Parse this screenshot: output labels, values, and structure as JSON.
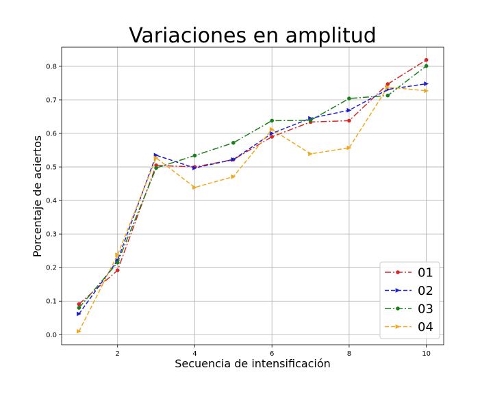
{
  "chart_data": {
    "type": "line",
    "title": "Variaciones en amplitud",
    "xlabel": "Secuencia de intensificación",
    "ylabel": "Porcentaje de aciertos",
    "x": [
      1,
      2,
      3,
      4,
      5,
      6,
      7,
      8,
      9,
      10
    ],
    "xlim": [
      0.55,
      10.45
    ],
    "ylim": [
      -0.03,
      0.857
    ],
    "xticks": [
      2,
      4,
      6,
      8,
      10
    ],
    "yticks": [
      0.0,
      0.1,
      0.2,
      0.3,
      0.4,
      0.5,
      0.6,
      0.7,
      0.8
    ],
    "ytick_labels": [
      "0.0",
      "0.1",
      "0.2",
      "0.3",
      "0.4",
      "0.5",
      "0.6",
      "0.7",
      "0.8"
    ],
    "grid": true,
    "legend_position": "lower-right",
    "series": [
      {
        "name": "01",
        "color": "#d62728",
        "dash": "dashdot",
        "marker": "circle",
        "values": [
          0.091,
          0.192,
          0.505,
          0.5,
          0.522,
          0.59,
          0.634,
          0.638,
          0.747,
          0.819
        ]
      },
      {
        "name": "02",
        "color": "#1f1fcc",
        "dash": "dashed",
        "marker": "triangle-right",
        "values": [
          0.062,
          0.222,
          0.535,
          0.497,
          0.522,
          0.6,
          0.645,
          0.669,
          0.731,
          0.748
        ]
      },
      {
        "name": "03",
        "color": "#1a7f1a",
        "dash": "dashdot",
        "marker": "circle",
        "values": [
          0.08,
          0.215,
          0.497,
          0.534,
          0.572,
          0.638,
          0.639,
          0.704,
          0.713,
          0.801
        ]
      },
      {
        "name": "04",
        "color": "#f0a81e",
        "dash": "dashed",
        "marker": "triangle-right",
        "values": [
          0.01,
          0.238,
          0.527,
          0.439,
          0.471,
          0.612,
          0.539,
          0.557,
          0.738,
          0.727
        ]
      }
    ]
  }
}
